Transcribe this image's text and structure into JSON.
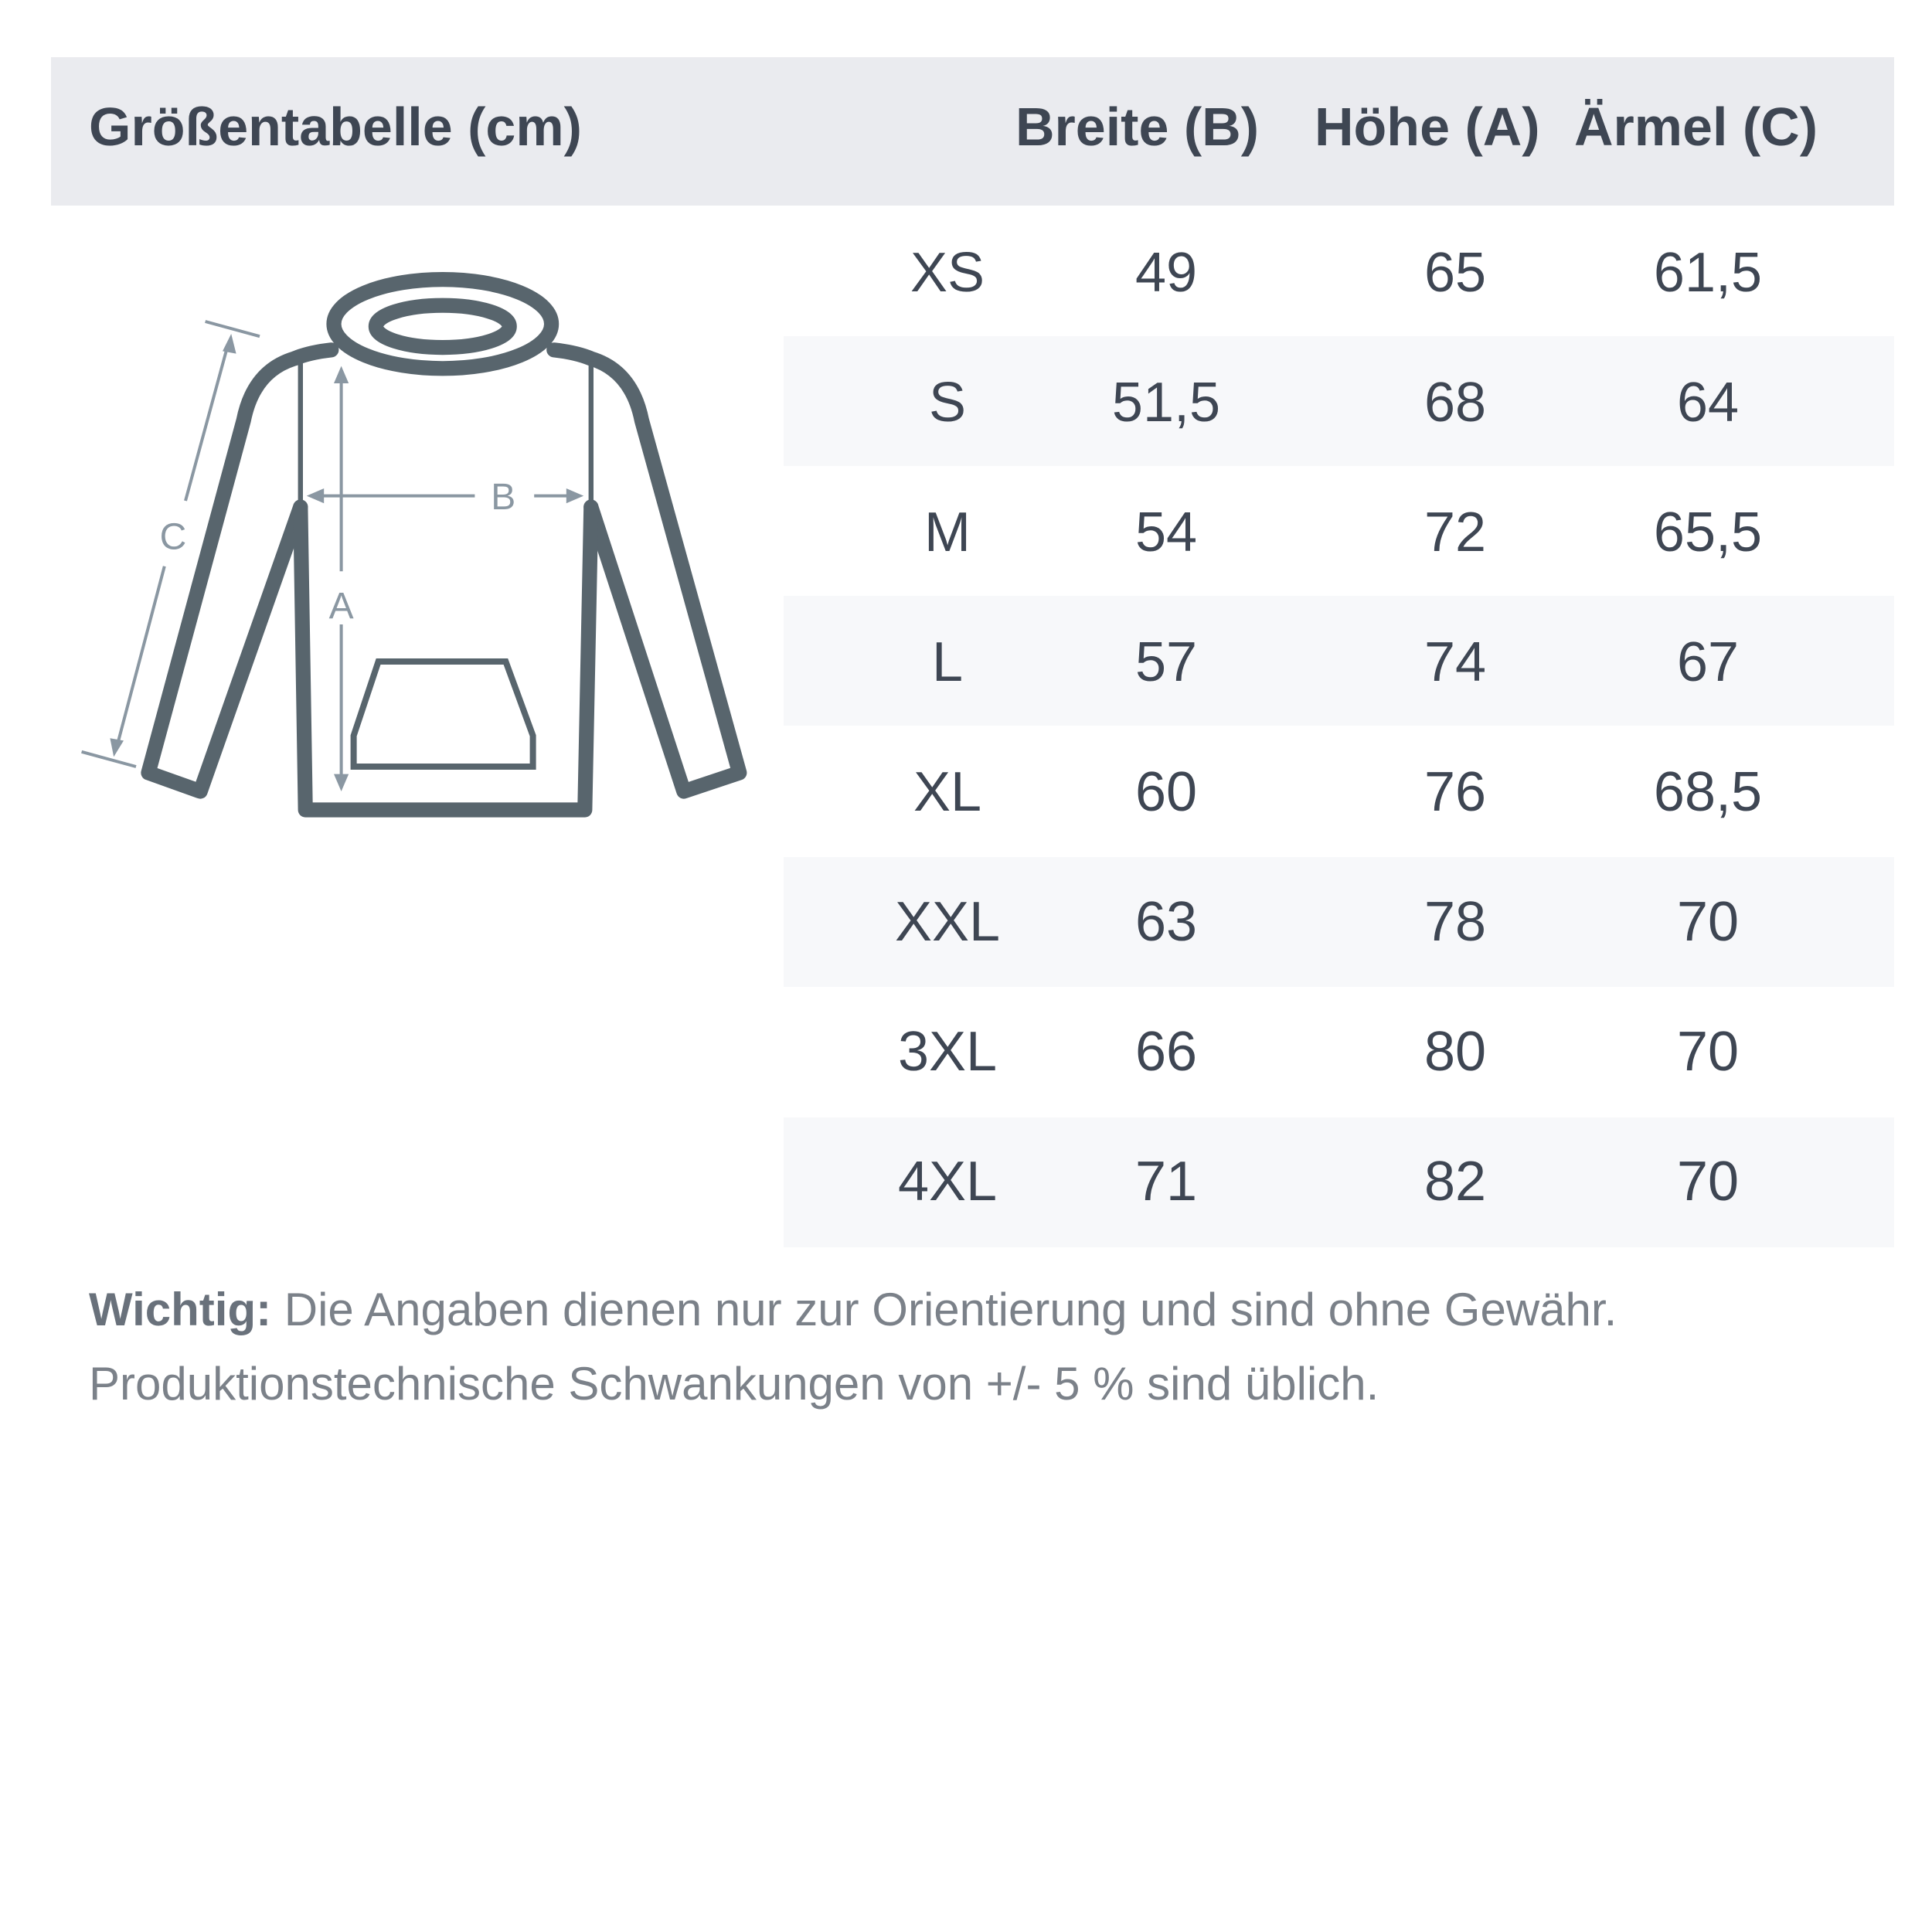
{
  "header": {
    "title": "Größentabelle (cm)",
    "columns": [
      "Breite (B)",
      "Höhe (A)",
      "Ärmel (C)"
    ]
  },
  "diagram": {
    "labels": {
      "width": "B",
      "height": "A",
      "sleeve": "C"
    }
  },
  "rows": [
    {
      "size": "XS",
      "breite": "49",
      "hoehe": "65",
      "aermel": "61,5"
    },
    {
      "size": "S",
      "breite": "51,5",
      "hoehe": "68",
      "aermel": "64"
    },
    {
      "size": "M",
      "breite": "54",
      "hoehe": "72",
      "aermel": "65,5"
    },
    {
      "size": "L",
      "breite": "57",
      "hoehe": "74",
      "aermel": "67"
    },
    {
      "size": "XL",
      "breite": "60",
      "hoehe": "76",
      "aermel": "68,5"
    },
    {
      "size": "XXL",
      "breite": "63",
      "hoehe": "78",
      "aermel": "70"
    },
    {
      "size": "3XL",
      "breite": "66",
      "hoehe": "80",
      "aermel": "70"
    },
    {
      "size": "4XL",
      "breite": "71",
      "hoehe": "82",
      "aermel": "70"
    }
  ],
  "note": {
    "label": "Wichtig:",
    "line1": "Die Angaben dienen nur zur Orientierung und sind ohne Gewähr.",
    "line2": "Produktionstechnische Schwankungen von +/- 5 % sind üblich."
  },
  "colors": {
    "header_bg": "#eaebef",
    "stripe": "#f7f8fa",
    "outline": "#58656d",
    "measure": "#8a97a2",
    "text": "#3e4653"
  }
}
